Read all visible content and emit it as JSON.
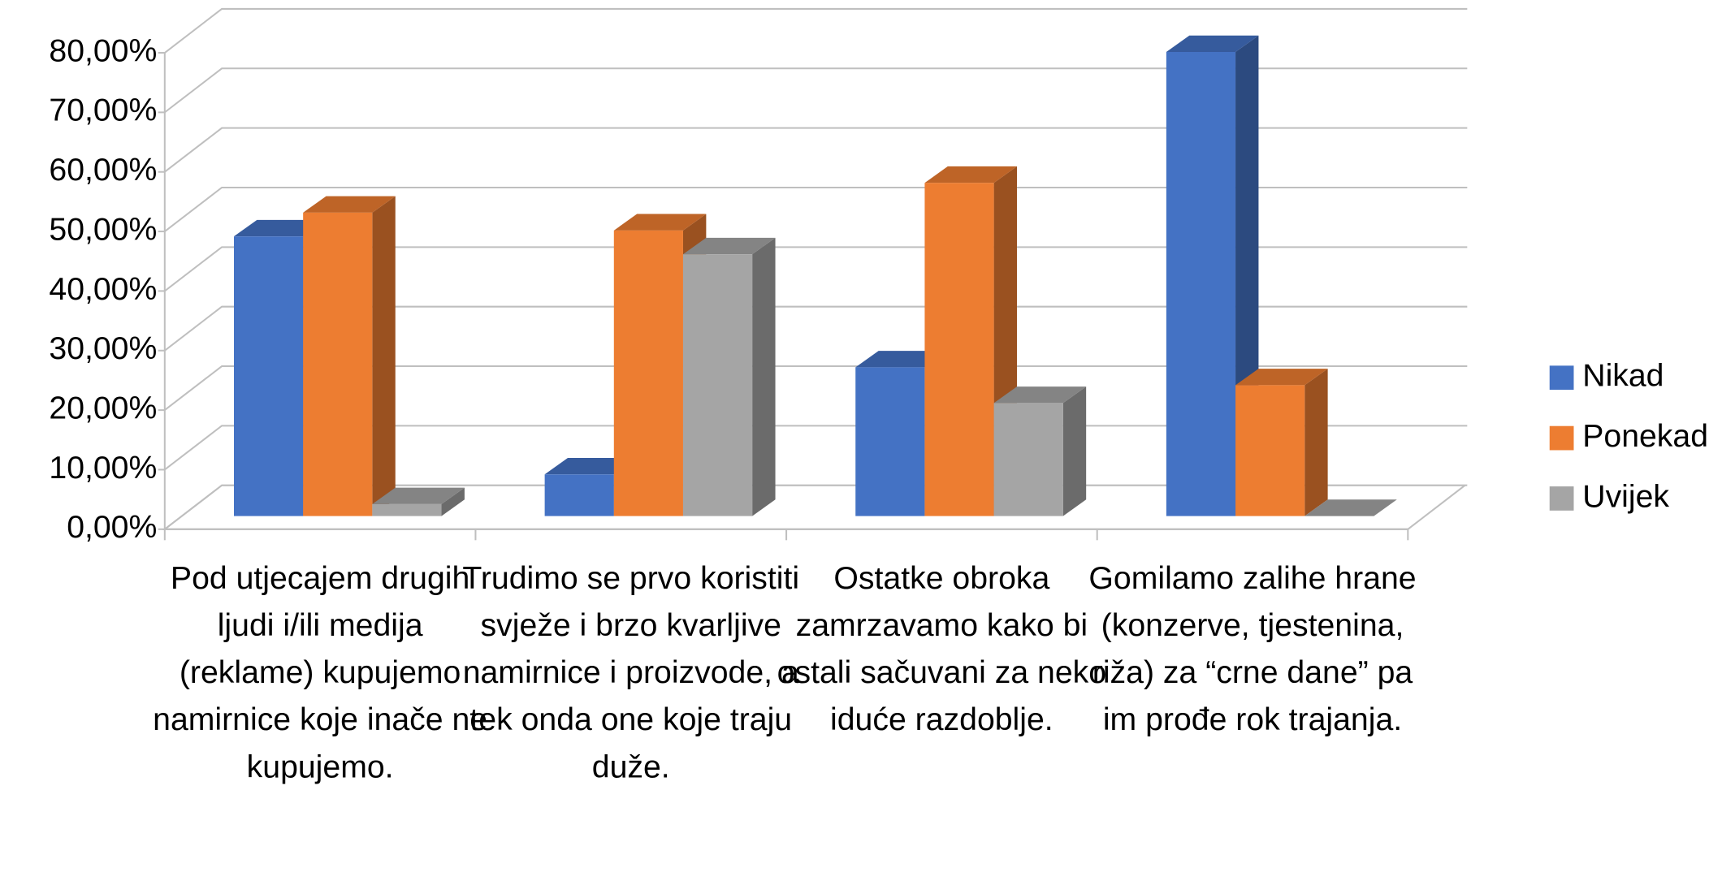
{
  "chart_data": {
    "type": "bar3d",
    "categories": [
      "Pod utjecajem drugih ljudi i/ili medija (reklame) kupujemo namirnice koje inače ne kupujemo.",
      "Trudimo se prvo koristiti svježe i brzo kvarljive namirnice i proizvode, a tek onda one koje traju duže.",
      "Ostatke obroka zamrzavamo kako bi ostali sačuvani za neko iduće razdoblje.",
      "Gomilamo zalihe hrane (konzerve, tjestenina, riža) za “crne dane” pa im prođe rok trajanja."
    ],
    "series": [
      {
        "name": "Nikad",
        "color": "#4472c4",
        "values": [
          47,
          7,
          25,
          78
        ]
      },
      {
        "name": "Ponekad",
        "color": "#ed7d31",
        "values": [
          51,
          48,
          56,
          22
        ]
      },
      {
        "name": "Uvijek",
        "color": "#a5a5a5",
        "values": [
          2,
          44,
          19,
          0
        ]
      }
    ],
    "ylim": [
      0,
      80
    ],
    "yticks": [
      {
        "value": 0,
        "label": "0,00%"
      },
      {
        "value": 10,
        "label": "10,00%"
      },
      {
        "value": 20,
        "label": "20,00%"
      },
      {
        "value": 30,
        "label": "30,00%"
      },
      {
        "value": 40,
        "label": "40,00%"
      },
      {
        "value": 50,
        "label": "50,00%"
      },
      {
        "value": 60,
        "label": "60,00%"
      },
      {
        "value": 70,
        "label": "70,00%"
      },
      {
        "value": 80,
        "label": "80,00%"
      }
    ],
    "grid": true,
    "legend": "right"
  }
}
